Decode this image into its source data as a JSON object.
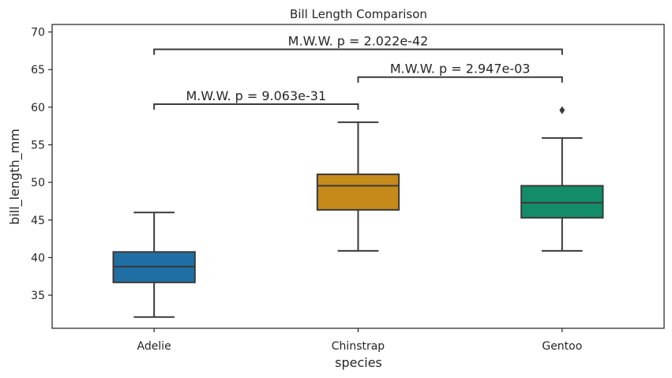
{
  "chart_data": {
    "type": "box",
    "title": "Bill Length Comparison",
    "xlabel": "species",
    "ylabel": "bill_length_mm",
    "ylim": [
      30.6,
      71
    ],
    "yticks": [
      35,
      40,
      45,
      50,
      55,
      60,
      65,
      70
    ],
    "grid": false,
    "categories": [
      "Adelie",
      "Chinstrap",
      "Gentoo"
    ],
    "boxes": [
      {
        "category": "Adelie",
        "whisker_low": 32.1,
        "q1": 36.7,
        "median": 38.8,
        "q3": 40.75,
        "whisker_high": 46.0,
        "outliers": [],
        "color": "#1f6fa4"
      },
      {
        "category": "Chinstrap",
        "whisker_low": 40.9,
        "q1": 46.35,
        "median": 49.55,
        "q3": 51.075,
        "whisker_high": 58.0,
        "outliers": [],
        "color": "#c58a1a"
      },
      {
        "category": "Gentoo",
        "whisker_low": 40.9,
        "q1": 45.3,
        "median": 47.3,
        "q3": 49.55,
        "whisker_high": 55.9,
        "outliers": [
          59.6
        ],
        "color": "#138d69"
      }
    ],
    "annotations": [
      {
        "from": "Adelie",
        "to": "Chinstrap",
        "text": "M.W.W. p = 9.063e-31",
        "y": 60.4
      },
      {
        "from": "Chinstrap",
        "to": "Gentoo",
        "text": "M.W.W. p = 2.947e-03",
        "y": 64.0
      },
      {
        "from": "Adelie",
        "to": "Gentoo",
        "text": "M.W.W. p = 2.022e-42",
        "y": 67.7
      }
    ]
  }
}
